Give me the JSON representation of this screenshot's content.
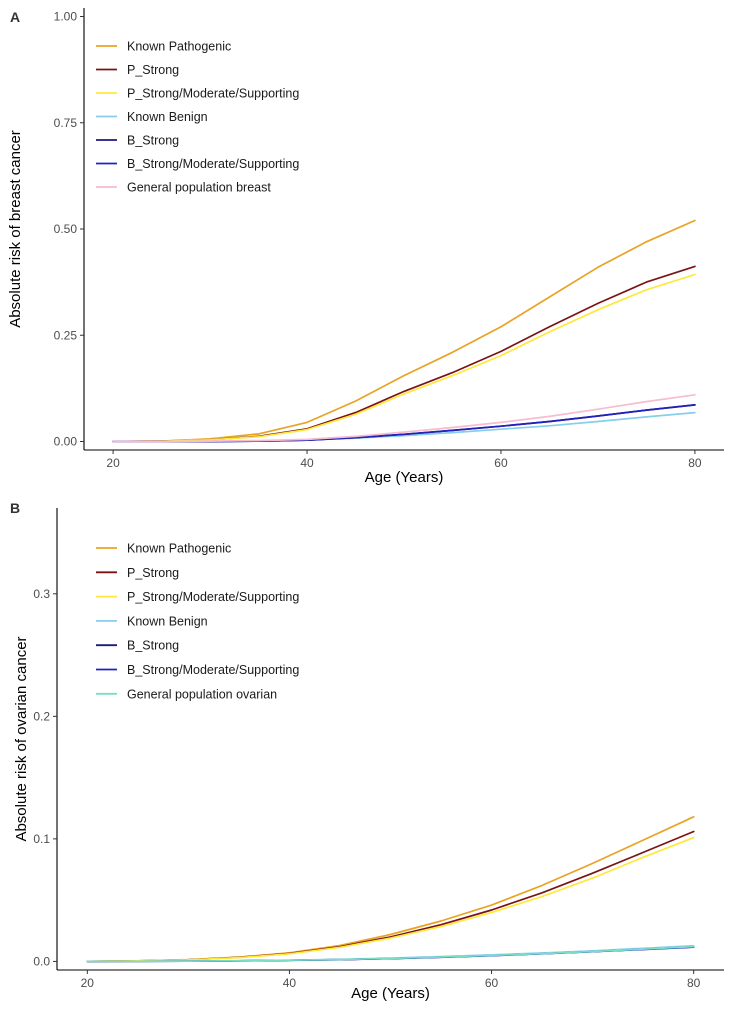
{
  "chart_data": [
    {
      "panel": "A",
      "type": "line",
      "title": "",
      "xlabel": "Age (Years)",
      "ylabel": "Absolute risk of breast cancer",
      "xlim": [
        17,
        83
      ],
      "ylim": [
        -0.02,
        1.02
      ],
      "xticks": [
        20,
        40,
        60,
        80
      ],
      "xtick_labels": [
        "20",
        "40",
        "60",
        "80"
      ],
      "yticks": [
        0,
        0.25,
        0.5,
        0.75,
        1.0
      ],
      "ytick_labels": [
        "0.00",
        "0.25",
        "0.50",
        "0.75",
        "1.00"
      ],
      "grid": false,
      "legend_position": "top-left",
      "x": [
        20,
        25,
        30,
        35,
        40,
        45,
        50,
        55,
        60,
        65,
        70,
        75,
        80
      ],
      "series": [
        {
          "name": "Known Pathogenic",
          "color": "#E9A324",
          "values": [
            0.0,
            0.001,
            0.006,
            0.018,
            0.045,
            0.095,
            0.155,
            0.21,
            0.27,
            0.34,
            0.41,
            0.47,
            0.52
          ]
        },
        {
          "name": "P_Strong",
          "color": "#7A1414",
          "values": [
            0.0,
            0.001,
            0.004,
            0.012,
            0.03,
            0.068,
            0.118,
            0.162,
            0.212,
            0.27,
            0.325,
            0.375,
            0.412
          ]
        },
        {
          "name": "P_Strong/Moderate/Supporting",
          "color": "#FFE83A",
          "values": [
            0.0,
            0.001,
            0.004,
            0.011,
            0.028,
            0.064,
            0.112,
            0.155,
            0.202,
            0.258,
            0.31,
            0.357,
            0.393
          ]
        },
        {
          "name": "Known Benign",
          "color": "#87CEEB",
          "values": [
            0.0,
            0.0,
            0.0,
            0.001,
            0.003,
            0.008,
            0.014,
            0.021,
            0.029,
            0.037,
            0.047,
            0.058,
            0.068
          ]
        },
        {
          "name": "B_Strong",
          "color": "#1A1A7E",
          "values": [
            0.0,
            0.0,
            0.0,
            0.001,
            0.003,
            0.009,
            0.017,
            0.026,
            0.036,
            0.047,
            0.06,
            0.074,
            0.086
          ]
        },
        {
          "name": "B_Strong/Moderate/Supporting",
          "color": "#2222BB",
          "values": [
            0.0,
            0.0,
            0.0,
            0.001,
            0.003,
            0.009,
            0.017,
            0.026,
            0.036,
            0.047,
            0.06,
            0.074,
            0.086
          ]
        },
        {
          "name": "General population breast",
          "color": "#F6BCD0",
          "values": [
            0.0,
            0.0,
            0.001,
            0.002,
            0.005,
            0.012,
            0.022,
            0.033,
            0.045,
            0.059,
            0.076,
            0.094,
            0.11
          ]
        }
      ]
    },
    {
      "panel": "B",
      "type": "line",
      "title": "",
      "xlabel": "Age (Years)",
      "ylabel": "Absolute risk of ovarian cancer",
      "xlim": [
        17,
        83
      ],
      "ylim": [
        -0.007,
        0.37
      ],
      "xticks": [
        20,
        40,
        60,
        80
      ],
      "xtick_labels": [
        "20",
        "40",
        "60",
        "80"
      ],
      "yticks": [
        0,
        0.1,
        0.2,
        0.3
      ],
      "ytick_labels": [
        "0.0",
        "0.1",
        "0.2",
        "0.3"
      ],
      "grid": false,
      "legend_position": "top-left",
      "x": [
        20,
        25,
        30,
        35,
        40,
        45,
        50,
        55,
        60,
        65,
        70,
        75,
        80
      ],
      "series": [
        {
          "name": "Known Pathogenic",
          "color": "#E9A324",
          "values": [
            0.0,
            0.0005,
            0.0015,
            0.0035,
            0.007,
            0.013,
            0.022,
            0.033,
            0.046,
            0.062,
            0.08,
            0.099,
            0.118
          ]
        },
        {
          "name": "P_Strong",
          "color": "#7A1414",
          "values": [
            0.0,
            0.0005,
            0.0014,
            0.0033,
            0.0065,
            0.012,
            0.02,
            0.03,
            0.042,
            0.056,
            0.072,
            0.089,
            0.106
          ]
        },
        {
          "name": "P_Strong/Moderate/Supporting",
          "color": "#FFE83A",
          "values": [
            0.0,
            0.0005,
            0.0013,
            0.0031,
            0.0062,
            0.0115,
            0.019,
            0.0285,
            0.04,
            0.053,
            0.068,
            0.085,
            0.101
          ]
        },
        {
          "name": "Known Benign",
          "color": "#87CEEB",
          "values": [
            0.0,
            0.0001,
            0.0003,
            0.0006,
            0.001,
            0.0017,
            0.0027,
            0.0039,
            0.0053,
            0.0069,
            0.0087,
            0.0107,
            0.0128
          ]
        },
        {
          "name": "B_Strong",
          "color": "#1A1A7E",
          "values": [
            0.0,
            0.0001,
            0.0002,
            0.0005,
            0.0009,
            0.0015,
            0.0024,
            0.0035,
            0.0048,
            0.0063,
            0.008,
            0.0099,
            0.0118
          ]
        },
        {
          "name": "B_Strong/Moderate/Supporting",
          "color": "#2222BB",
          "values": [
            0.0,
            0.0001,
            0.0002,
            0.0005,
            0.0009,
            0.0015,
            0.0023,
            0.0034,
            0.0047,
            0.0062,
            0.0079,
            0.0097,
            0.0116
          ]
        },
        {
          "name": "General population ovarian",
          "color": "#79DEC9",
          "values": [
            0.0,
            0.0001,
            0.0003,
            0.0006,
            0.001,
            0.0016,
            0.0025,
            0.0036,
            0.0049,
            0.0064,
            0.0081,
            0.01,
            0.012
          ]
        }
      ]
    }
  ]
}
